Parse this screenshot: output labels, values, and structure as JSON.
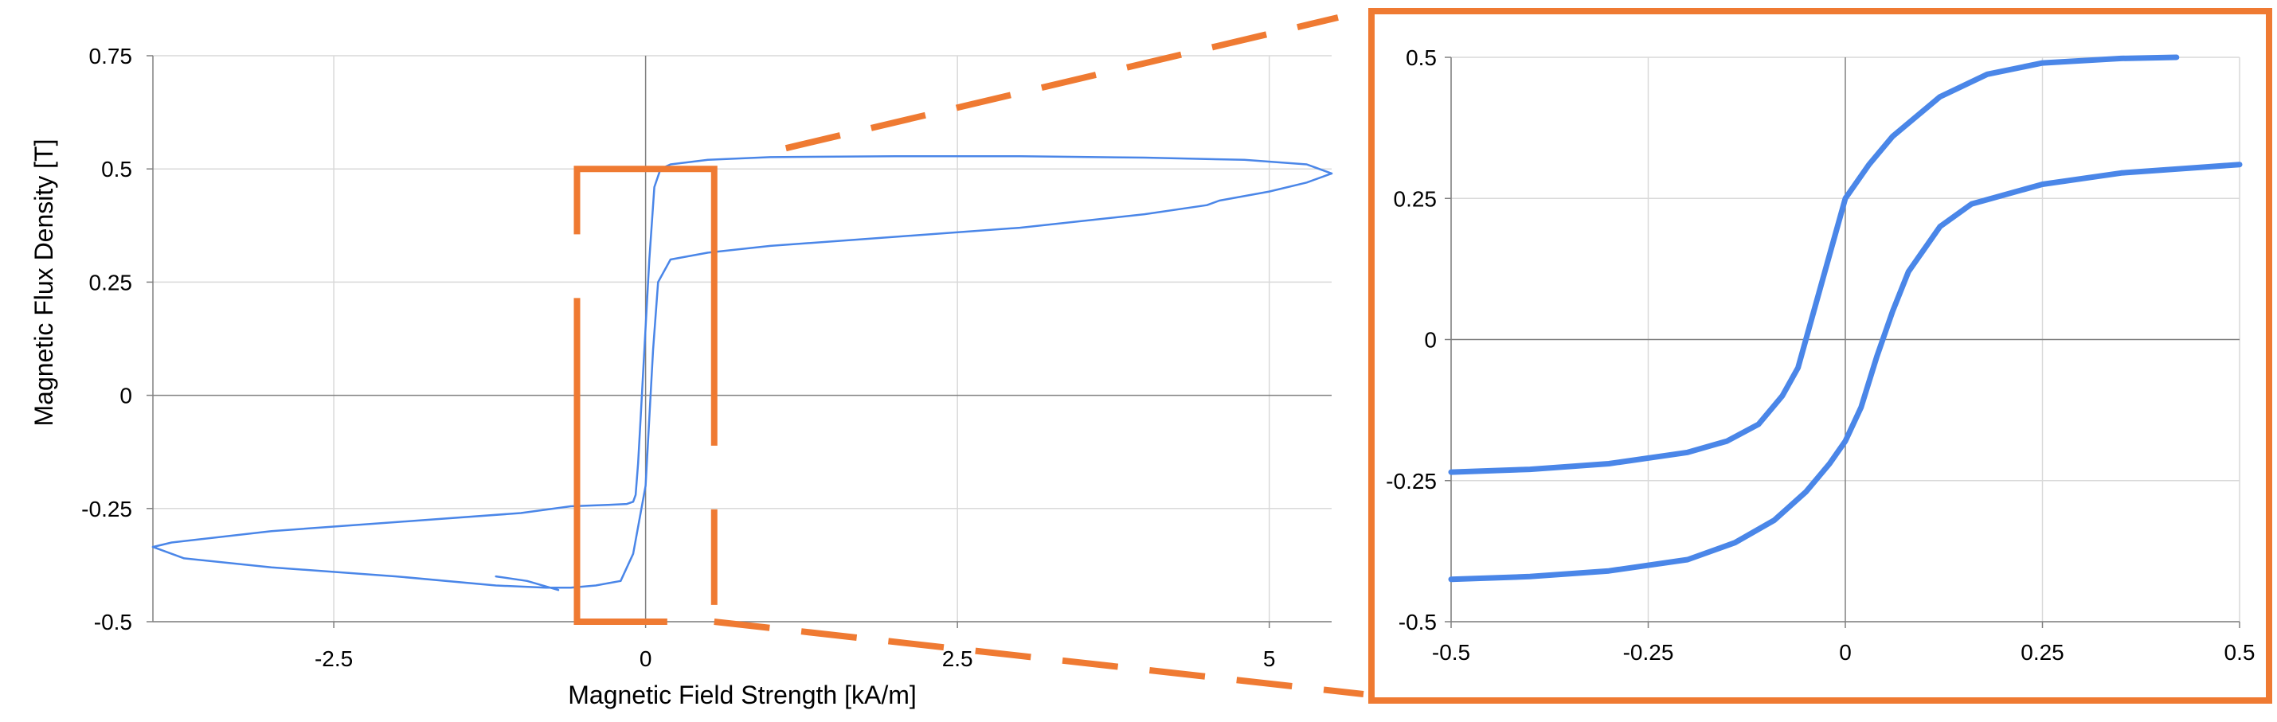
{
  "colors": {
    "curve": "#4a86e8",
    "highlight": "#ef7a32",
    "grid": "#d9d9d9",
    "axis": "#808080"
  },
  "chart_data": [
    {
      "type": "line",
      "name": "main",
      "xlabel": "Magnetic Field Strength [kA/m]",
      "ylabel": "Magnetic Flux Density [T]",
      "xlim": [
        -3.95,
        5.5
      ],
      "ylim": [
        -0.5,
        0.75
      ],
      "xticks": [
        -2.5,
        0,
        2.5,
        5
      ],
      "xtick_labels": [
        "-2.5",
        "0",
        "2.5",
        "5"
      ],
      "yticks": [
        -0.5,
        -0.25,
        0,
        0.25,
        0.5,
        0.75
      ],
      "ytick_labels": [
        "-0.5",
        "-0.25",
        "0",
        "0.25",
        "0.5",
        "0.75"
      ],
      "grid": true,
      "series": [
        {
          "x": [
            5.5,
            5.3,
            4.8,
            4.0,
            3.0,
            2.0,
            1.0,
            0.5,
            0.2,
            0.12,
            0.07,
            0.03,
            0.0,
            -0.02,
            -0.04,
            -0.06,
            -0.08,
            -0.1,
            -0.15,
            -0.3,
            -0.6,
            -1.0,
            -2.0,
            -3.0,
            -3.8,
            -3.95
          ],
          "y": [
            0.49,
            0.51,
            0.52,
            0.525,
            0.528,
            0.528,
            0.526,
            0.52,
            0.51,
            0.5,
            0.46,
            0.3,
            0.15,
            0.05,
            -0.05,
            -0.15,
            -0.22,
            -0.235,
            -0.24,
            -0.242,
            -0.245,
            -0.26,
            -0.28,
            -0.3,
            -0.325,
            -0.335
          ]
        },
        {
          "x": [
            -3.95,
            -3.7,
            -3.0,
            -2.0,
            -1.2,
            -0.8,
            -0.6,
            -0.4,
            -0.2,
            -0.1,
            0.0,
            0.03,
            0.06,
            0.1,
            0.2,
            0.5,
            1.0,
            2.0,
            3.0,
            4.0,
            4.5,
            4.6,
            5.0,
            5.3,
            5.5
          ],
          "y": [
            -0.335,
            -0.36,
            -0.38,
            -0.4,
            -0.42,
            -0.425,
            -0.425,
            -0.42,
            -0.41,
            -0.35,
            -0.2,
            -0.05,
            0.1,
            0.25,
            0.3,
            0.315,
            0.33,
            0.35,
            0.37,
            0.4,
            0.42,
            0.43,
            0.45,
            0.47,
            0.49
          ]
        },
        {
          "x": [
            -1.2,
            -0.95,
            -0.7
          ],
          "y": [
            -0.4,
            -0.41,
            -0.43
          ]
        }
      ]
    },
    {
      "type": "line",
      "name": "zoom",
      "xlim": [
        -0.5,
        0.5
      ],
      "ylim": [
        -0.5,
        0.5
      ],
      "xticks": [
        -0.5,
        -0.25,
        0,
        0.25,
        0.5
      ],
      "xtick_labels": [
        "-0.5",
        "-0.25",
        "0",
        "0.25",
        "0.5"
      ],
      "yticks": [
        -0.5,
        -0.25,
        0,
        0.25,
        0.5
      ],
      "ytick_labels": [
        "-0.5",
        "-0.25",
        "0",
        "0.25",
        "0.5"
      ],
      "grid": true,
      "series": [
        {
          "x": [
            0.42,
            0.35,
            0.25,
            0.18,
            0.12,
            0.06,
            0.03,
            0.0,
            -0.02,
            -0.04,
            -0.06,
            -0.08,
            -0.11,
            -0.15,
            -0.2,
            -0.3,
            -0.4,
            -0.5
          ],
          "y": [
            0.5,
            0.498,
            0.49,
            0.47,
            0.43,
            0.36,
            0.31,
            0.25,
            0.15,
            0.05,
            -0.05,
            -0.1,
            -0.15,
            -0.18,
            -0.2,
            -0.22,
            -0.23,
            -0.235
          ]
        },
        {
          "x": [
            -0.5,
            -0.4,
            -0.3,
            -0.2,
            -0.14,
            -0.09,
            -0.05,
            -0.02,
            0.0,
            0.02,
            0.04,
            0.06,
            0.08,
            0.12,
            0.16,
            0.25,
            0.35,
            0.45,
            0.5
          ],
          "y": [
            -0.425,
            -0.42,
            -0.41,
            -0.39,
            -0.36,
            -0.32,
            -0.27,
            -0.22,
            -0.18,
            -0.12,
            -0.03,
            0.05,
            0.12,
            0.2,
            0.24,
            0.275,
            0.295,
            0.305,
            0.31
          ]
        }
      ]
    }
  ]
}
